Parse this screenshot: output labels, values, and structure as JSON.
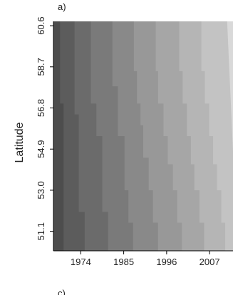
{
  "chart_data": {
    "type": "heatmap",
    "panel_label": "a)",
    "next_panel_label": "c)",
    "ylabel": "Latitude",
    "xlabel": "",
    "x_ticks": [
      "1974",
      "1985",
      "1996",
      "2007"
    ],
    "y_ticks": [
      "51.1",
      "53.0",
      "54.9",
      "56.8",
      "58.7",
      "60.6"
    ],
    "xlim": [
      1967,
      2013
    ],
    "ylim": [
      50.2,
      60.8
    ],
    "x_tick_values": [
      1974,
      1985,
      1996,
      2007
    ],
    "y_tick_values": [
      51.1,
      53.0,
      54.9,
      56.8,
      58.7,
      60.6
    ],
    "grid": false,
    "legend": "none",
    "bands": [
      {
        "shade": "#4d4d4d",
        "boundary": [
          [
            50.2,
            1969.6
          ],
          [
            57.0,
            1969.6
          ],
          [
            57.0,
            1968.7
          ],
          [
            60.8,
            1968.7
          ]
        ]
      },
      {
        "shade": "#5c5c5c",
        "boundary": [
          [
            50.2,
            1975.0
          ],
          [
            52.0,
            1975.0
          ],
          [
            52.0,
            1973.5
          ],
          [
            56.5,
            1973.5
          ],
          [
            56.5,
            1972.4
          ],
          [
            60.8,
            1972.4
          ]
        ]
      },
      {
        "shade": "#6b6b6b",
        "boundary": [
          [
            50.2,
            1981.0
          ],
          [
            52.0,
            1981.0
          ],
          [
            52.0,
            1979.5
          ],
          [
            55.5,
            1979.5
          ],
          [
            55.5,
            1978.0
          ],
          [
            57.0,
            1978.0
          ],
          [
            57.0,
            1976.6
          ],
          [
            60.8,
            1976.6
          ]
        ]
      },
      {
        "shade": "#7a7a7a",
        "boundary": [
          [
            50.2,
            1987.4
          ],
          [
            51.5,
            1987.4
          ],
          [
            51.5,
            1986.2
          ],
          [
            53.0,
            1986.2
          ],
          [
            53.0,
            1985.2
          ],
          [
            55.5,
            1985.2
          ],
          [
            55.5,
            1983.5
          ],
          [
            57.8,
            1983.5
          ],
          [
            57.8,
            1982.1
          ],
          [
            60.8,
            1982.1
          ]
        ]
      },
      {
        "shade": "#898989",
        "boundary": [
          [
            50.2,
            1993.8
          ],
          [
            51.5,
            1993.8
          ],
          [
            51.5,
            1992.5
          ],
          [
            53.0,
            1992.5
          ],
          [
            53.0,
            1991.4
          ],
          [
            54.5,
            1991.4
          ],
          [
            54.5,
            1990.0
          ],
          [
            56.0,
            1990.0
          ],
          [
            56.0,
            1989.3
          ],
          [
            57.0,
            1989.3
          ],
          [
            57.0,
            1988.4
          ],
          [
            58.5,
            1988.4
          ],
          [
            58.5,
            1987.6
          ],
          [
            60.8,
            1987.6
          ]
        ]
      },
      {
        "shade": "#989898",
        "boundary": [
          [
            50.2,
            1999.9
          ],
          [
            51.5,
            1999.9
          ],
          [
            51.5,
            1998.7
          ],
          [
            53.0,
            1998.7
          ],
          [
            53.0,
            1997.6
          ],
          [
            54.2,
            1997.6
          ],
          [
            54.2,
            1996.3
          ],
          [
            55.5,
            1996.3
          ],
          [
            55.5,
            1995.2
          ],
          [
            57.0,
            1995.2
          ],
          [
            57.0,
            1993.8
          ],
          [
            58.5,
            1993.8
          ],
          [
            58.5,
            1993.2
          ],
          [
            60.8,
            1993.2
          ]
        ]
      },
      {
        "shade": "#a6a6a6",
        "boundary": [
          [
            50.2,
            2005.6
          ],
          [
            51.5,
            2005.6
          ],
          [
            51.5,
            2004.4
          ],
          [
            53.0,
            2004.4
          ],
          [
            53.0,
            2003.1
          ],
          [
            54.2,
            2003.1
          ],
          [
            54.2,
            2002.2
          ],
          [
            55.5,
            2002.2
          ],
          [
            55.5,
            2001.2
          ],
          [
            57.0,
            2001.2
          ],
          [
            57.0,
            2000.1
          ],
          [
            58.5,
            2000.1
          ],
          [
            58.5,
            1999.2
          ],
          [
            60.8,
            1999.2
          ]
        ]
      },
      {
        "shade": "#b5b5b5",
        "boundary": [
          [
            50.2,
            2011.0
          ],
          [
            51.5,
            2011.0
          ],
          [
            51.5,
            2010.0
          ],
          [
            53.0,
            2010.0
          ],
          [
            53.0,
            2008.9
          ],
          [
            54.2,
            2008.9
          ],
          [
            54.2,
            2007.9
          ],
          [
            55.5,
            2007.9
          ],
          [
            55.5,
            2006.9
          ],
          [
            57.0,
            2006.9
          ],
          [
            57.0,
            2005.8
          ],
          [
            58.5,
            2005.8
          ],
          [
            58.5,
            2004.9
          ],
          [
            60.8,
            2004.9
          ]
        ]
      },
      {
        "shade": "#c3c3c3",
        "boundary": [
          [
            50.2,
            2013.0
          ],
          [
            60.8,
            2013.0
          ]
        ]
      }
    ],
    "band_extra_white_edge": [
      [
        54.8,
        2013.0
      ],
      [
        60.8,
        2011.5
      ]
    ]
  }
}
